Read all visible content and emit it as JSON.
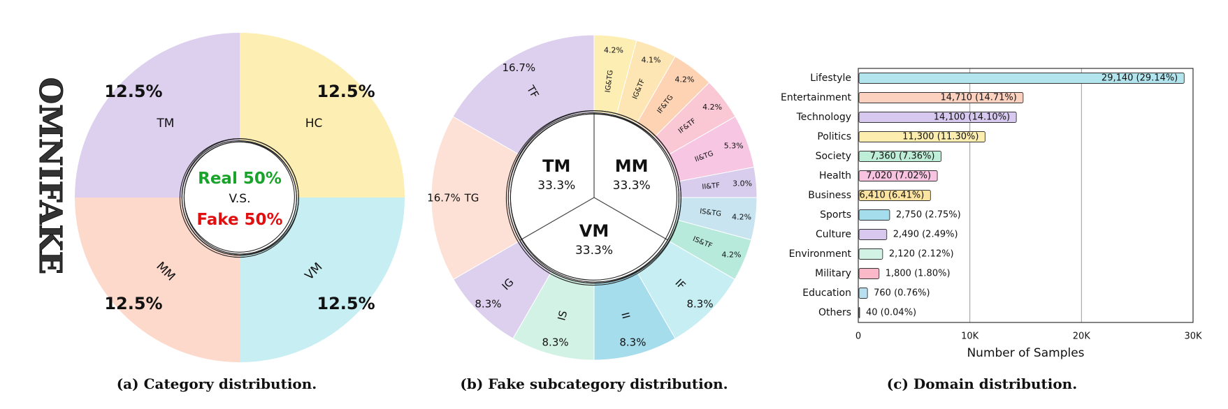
{
  "side_logo": "OMNIFAKE",
  "chart_data": [
    {
      "type": "pie",
      "caption": "(a) Category distribution.",
      "slices": [
        {
          "label": "HC",
          "value": 12.5,
          "value_label": "12.5%",
          "color": "#fdeeb3"
        },
        {
          "label": "VM",
          "value": 12.5,
          "value_label": "12.5%",
          "color": "#c7eef2"
        },
        {
          "label": "MM",
          "value": 12.5,
          "value_label": "12.5%",
          "color": "#fdd9cc"
        },
        {
          "label": "TM",
          "value": 12.5,
          "value_label": "12.5%",
          "color": "#ddd0ee"
        }
      ],
      "center": {
        "line1": "Real 50%",
        "line2": "V.S.",
        "line3": "Fake 50%",
        "real_color": "#1aa32a",
        "fake_color": "#e01010"
      }
    },
    {
      "type": "pie",
      "caption": "(b) Fake subcategory distribution.",
      "inner": [
        {
          "label": "MM",
          "value": 33.3,
          "value_label": "33.3%"
        },
        {
          "label": "VM",
          "value": 33.3,
          "value_label": "33.3%"
        },
        {
          "label": "TM",
          "value": 33.3,
          "value_label": "33.3%"
        }
      ],
      "outer": [
        {
          "label": "IG&TG",
          "value": 4.2,
          "value_label": "4.2%",
          "color": "#fdeeb3"
        },
        {
          "label": "IG&TF",
          "value": 4.1,
          "value_label": "4.1%",
          "color": "#fde6b3"
        },
        {
          "label": "IF&TG",
          "value": 4.2,
          "value_label": "4.2%",
          "color": "#fdd3b3"
        },
        {
          "label": "IF&TF",
          "value": 4.2,
          "value_label": "4.2%",
          "color": "#f9c8d4"
        },
        {
          "label": "II&TG",
          "value": 5.3,
          "value_label": "5.3%",
          "color": "#f6c6e3"
        },
        {
          "label": "II&TF",
          "value": 3.0,
          "value_label": "3.0%",
          "color": "#d8cdec"
        },
        {
          "label": "IS&TG",
          "value": 4.2,
          "value_label": "4.2%",
          "color": "#c7e4f0"
        },
        {
          "label": "IS&TF",
          "value": 4.2,
          "value_label": "4.2%",
          "color": "#b8eadb"
        },
        {
          "label": "IF",
          "value": 8.3,
          "value_label": "8.3%",
          "color": "#c7eef2"
        },
        {
          "label": "II",
          "value": 8.3,
          "value_label": "8.3%",
          "color": "#a6ddec"
        },
        {
          "label": "IS",
          "value": 8.3,
          "value_label": "8.3%",
          "color": "#d3f2e6"
        },
        {
          "label": "IG",
          "value": 8.3,
          "value_label": "8.3%",
          "color": "#ddd0ee"
        },
        {
          "label": "TG",
          "value": 16.7,
          "value_label": "16.7%",
          "color": "#fde0d6"
        },
        {
          "label": "TF",
          "value": 16.7,
          "value_label": "16.7%",
          "color": "#ddd0ee"
        }
      ]
    },
    {
      "type": "bar",
      "orientation": "horizontal",
      "caption": "(c) Domain distribution.",
      "xlabel": "Number of Samples",
      "xlim": [
        0,
        30000
      ],
      "xticks": [
        0,
        10000,
        20000,
        30000
      ],
      "xtick_labels": [
        "0",
        "10K",
        "20K",
        "30K"
      ],
      "grid": "vertical",
      "categories": [
        "Lifestyle",
        "Entertainment",
        "Technology",
        "Politics",
        "Society",
        "Health",
        "Business",
        "Sports",
        "Culture",
        "Environment",
        "Military",
        "Education",
        "Others"
      ],
      "values": [
        29140,
        14710,
        14100,
        11300,
        7360,
        7020,
        6410,
        2750,
        2490,
        2120,
        1800,
        760,
        40
      ],
      "value_labels": [
        "29,140 (29.14%)",
        "14,710 (14.71%)",
        "14,100 (14.10%)",
        "11,300 (11.30%)",
        "7,360 (7.36%)",
        "7,020 (7.02%)",
        "6,410 (6.41%)",
        "2,750 (2.75%)",
        "2,490 (2.49%)",
        "2,120 (2.12%)",
        "1,800 (1.80%)",
        "760 (0.76%)",
        "40 (0.04%)"
      ],
      "colors": [
        "#b3e5ee",
        "#fdd1c0",
        "#d6c8ee",
        "#fdeeb0",
        "#bfeed8",
        "#f8c3e0",
        "#fde3a0",
        "#a6ddec",
        "#d8c8ee",
        "#d3f2e6",
        "#fbb8c8",
        "#b8e0f0",
        "#ffffff"
      ]
    }
  ]
}
